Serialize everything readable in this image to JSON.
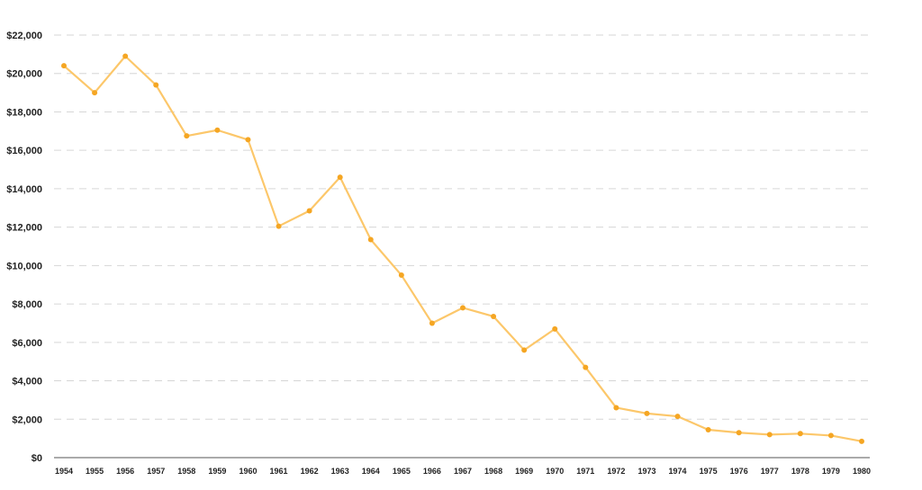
{
  "chart_data": {
    "type": "line",
    "title": "",
    "xlabel": "",
    "ylabel": "",
    "x": [
      "1954",
      "1955",
      "1956",
      "1957",
      "1958",
      "1959",
      "1960",
      "1961",
      "1962",
      "1963",
      "1964",
      "1965",
      "1966",
      "1967",
      "1968",
      "1969",
      "1970",
      "1971",
      "1972",
      "1973",
      "1974",
      "1975",
      "1976",
      "1977",
      "1978",
      "1979",
      "1980"
    ],
    "series": [
      {
        "values": [
          20400,
          19000,
          20900,
          19400,
          16750,
          17050,
          16550,
          12050,
          12850,
          14600,
          11350,
          9500,
          7000,
          7800,
          7350,
          5600,
          6700,
          4700,
          2600,
          2300,
          2150,
          1450,
          1300,
          1200,
          1250,
          1150,
          850
        ],
        "color": "#fcc76a",
        "marker_color": "#f5a623"
      }
    ],
    "ylim": [
      0,
      22000
    ],
    "yticks": [
      0,
      2000,
      4000,
      6000,
      8000,
      10000,
      12000,
      14000,
      16000,
      18000,
      20000,
      22000
    ],
    "ytick_labels": [
      "$0",
      "$2,000",
      "$4,000",
      "$6,000",
      "$8,000",
      "$10,000",
      "$12,000",
      "$14,000",
      "$16,000",
      "$18,000",
      "$20,000",
      "$22,000"
    ],
    "grid": true,
    "legend": "none"
  }
}
